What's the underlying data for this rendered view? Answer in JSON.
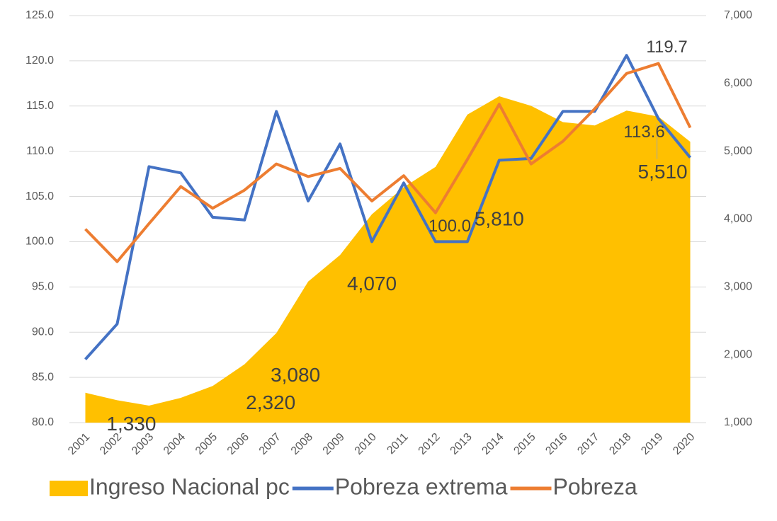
{
  "chart_data": {
    "type": "line",
    "categories": [
      "2001",
      "2002",
      "2003",
      "2004",
      "2005",
      "2006",
      "2007",
      "2008",
      "2009",
      "2010",
      "2011",
      "2012",
      "2013",
      "2014",
      "2015",
      "2016",
      "2017",
      "2018",
      "2019",
      "2020"
    ],
    "series": [
      {
        "name": "Ingreso Nacional pc",
        "type": "area",
        "axis": "y2",
        "color": "#ffc000",
        "values": [
          1440,
          1330,
          1250,
          1365,
          1540,
          1860,
          2320,
          3080,
          3470,
          4070,
          4470,
          4770,
          5540,
          5810,
          5670,
          5430,
          5380,
          5600,
          5510,
          5140
        ],
        "value_labels": [
          null,
          "1,330",
          null,
          null,
          null,
          null,
          "2,320",
          "3,080",
          null,
          "4,070",
          null,
          null,
          null,
          "5,810",
          null,
          null,
          null,
          null,
          "5,510",
          null
        ]
      },
      {
        "name": "Pobreza extrema",
        "type": "line",
        "color": "#4472c4",
        "values": [
          87.0,
          90.9,
          108.3,
          107.6,
          102.7,
          102.4,
          114.4,
          104.5,
          110.8,
          100.0,
          106.5,
          100.0,
          100.0,
          109.0,
          109.2,
          114.4,
          114.4,
          120.6,
          113.6,
          109.3
        ],
        "value_labels": [
          null,
          null,
          null,
          null,
          null,
          null,
          null,
          null,
          null,
          null,
          null,
          "100.0",
          null,
          null,
          null,
          null,
          null,
          null,
          "113.6",
          null
        ]
      },
      {
        "name": "Pobreza",
        "type": "line",
        "color": "#ed7d31",
        "values": [
          101.4,
          97.8,
          102.0,
          106.1,
          103.7,
          105.7,
          108.6,
          107.2,
          108.1,
          104.5,
          107.3,
          103.2,
          109.1,
          115.2,
          108.6,
          111.1,
          114.7,
          118.6,
          119.7,
          112.6
        ],
        "value_labels": [
          null,
          null,
          null,
          null,
          null,
          null,
          null,
          null,
          null,
          null,
          null,
          null,
          null,
          null,
          null,
          null,
          null,
          null,
          "119.7",
          null
        ]
      }
    ],
    "ylim": [
      80,
      125
    ],
    "yticks": [
      {
        "value": 80,
        "label": "80.0"
      },
      {
        "value": 85,
        "label": "85.0"
      },
      {
        "value": 90,
        "label": "90.0"
      },
      {
        "value": 95,
        "label": "95.0"
      },
      {
        "value": 100,
        "label": "100.0"
      },
      {
        "value": 105,
        "label": "105.0"
      },
      {
        "value": 110,
        "label": "110.0"
      },
      {
        "value": 115,
        "label": "115.0"
      },
      {
        "value": 120,
        "label": "120.0"
      },
      {
        "value": 125,
        "label": "125.0"
      }
    ],
    "y2lim": [
      1000,
      7000
    ],
    "y2ticks": [
      {
        "value": 1000,
        "label": "1,000"
      },
      {
        "value": 2000,
        "label": "2,000"
      },
      {
        "value": 3000,
        "label": "3,000"
      },
      {
        "value": 4000,
        "label": "4,000"
      },
      {
        "value": 5000,
        "label": "5,000"
      },
      {
        "value": 6000,
        "label": "6,000"
      },
      {
        "value": 7000,
        "label": "7,000"
      }
    ],
    "grid": true,
    "legend": "bottom"
  }
}
